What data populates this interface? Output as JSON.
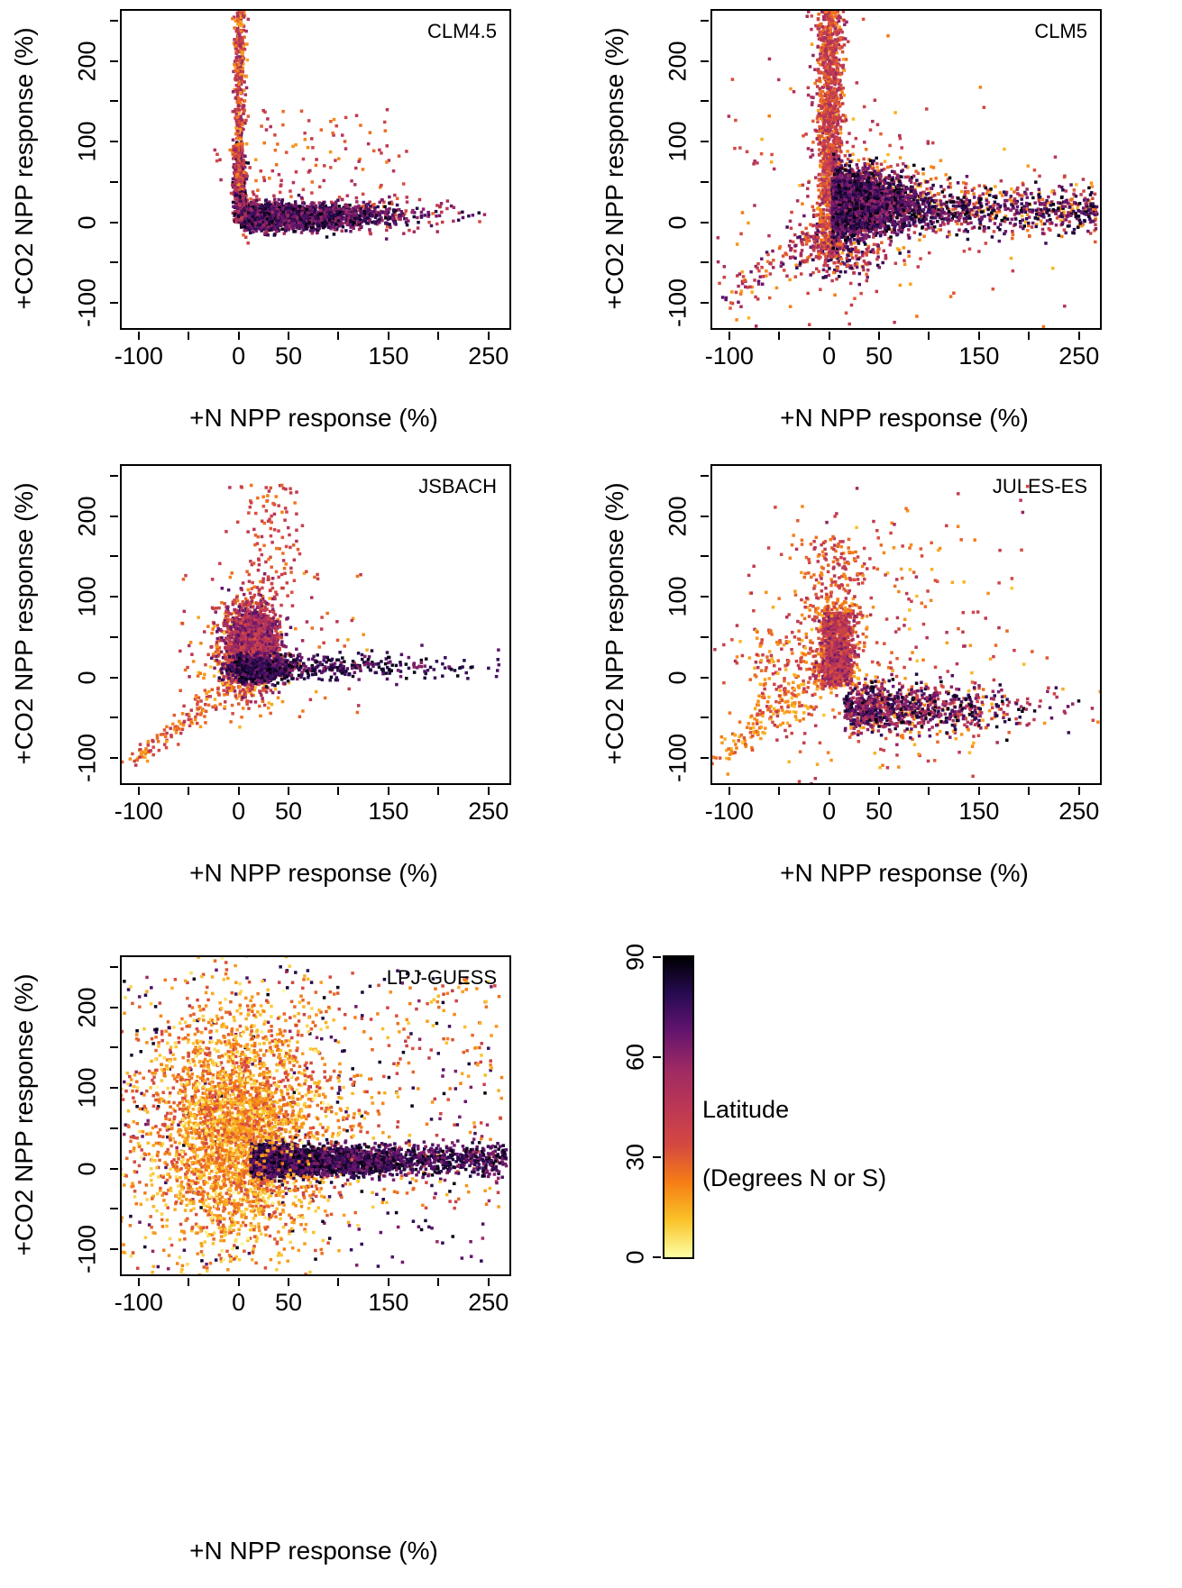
{
  "chart_data": {
    "type": "scatter",
    "xlabel": "+N NPP response (%)",
    "ylabel": "+CO2 NPP response (%)",
    "xlim": [
      -117,
      271
    ],
    "ylim": [
      -131,
      262
    ],
    "x_tick_values": [
      -100,
      -50,
      0,
      50,
      100,
      150,
      200,
      250
    ],
    "x_tick_labels": [
      "-100",
      "",
      "0",
      "50",
      "",
      "150",
      "",
      "250"
    ],
    "y_tick_values": [
      -100,
      -50,
      0,
      50,
      100,
      150,
      200,
      250
    ],
    "y_tick_labels": [
      "-100",
      "",
      "0",
      "",
      "100",
      "",
      "200",
      ""
    ],
    "color_variable": "Latitude (Degrees N or S)",
    "point_shape": "square",
    "legend": {
      "title": "Latitude",
      "subtitle": "(Degrees N or S)",
      "min": 0,
      "max": 90,
      "tick_values": [
        0,
        30,
        60,
        90
      ],
      "tick_labels": [
        "0",
        "30",
        "60",
        "90"
      ],
      "colormap": [
        {
          "p": 0,
          "c": "#fcffa4"
        },
        {
          "p": 0.125,
          "c": "#fac228"
        },
        {
          "p": 0.25,
          "c": "#f57d15"
        },
        {
          "p": 0.375,
          "c": "#d44842"
        },
        {
          "p": 0.5,
          "c": "#bb3755"
        },
        {
          "p": 0.625,
          "c": "#9f2a63"
        },
        {
          "p": 0.75,
          "c": "#65156e"
        },
        {
          "p": 0.875,
          "c": "#280b53"
        },
        {
          "p": 1,
          "c": "#000004"
        }
      ]
    },
    "panels": [
      {
        "title": "CLM4.5",
        "clusters": [
          {
            "n": 90,
            "x": {
              "u": [
                10,
                170
              ]
            },
            "y": {
              "u": [
                25,
                140
              ]
            },
            "lat": {
              "u": [
                18,
                50
              ]
            }
          },
          {
            "n": 260,
            "x": {
              "hn": [
                2,
                95
              ]
            },
            "y": {
              "n": [
                10,
                13
              ]
            },
            "lat": {
              "u": [
                25,
                55
              ]
            }
          },
          {
            "n": 1800,
            "x": {
              "hn": [
                2,
                70
              ]
            },
            "y": {
              "n": [
                7,
                8
              ]
            },
            "lat": {
              "u": [
                55,
                90
              ]
            }
          },
          {
            "n": 800,
            "x": {
              "n": [
                1,
                2.5
              ]
            },
            "y": {
              "hn": [
                0,
                40
              ]
            },
            "lat": {
              "u": [
                35,
                90
              ]
            }
          },
          {
            "n": 400,
            "x": {
              "n": [
                1,
                3
              ]
            },
            "y": {
              "u": [
                40,
                262
              ]
            },
            "lat": {
              "u": [
                15,
                60
              ]
            }
          },
          {
            "n": 12,
            "x": {
              "u": [
                -25,
                -3
              ]
            },
            "y": {
              "u": [
                40,
                95
              ]
            },
            "lat": {
              "u": [
                30,
                60
              ]
            }
          }
        ]
      },
      {
        "title": "CLM5",
        "clusters": [
          {
            "n": 220,
            "x": {
              "n": [
                20,
                80
              ]
            },
            "y": {
              "n": [
                30,
                80
              ]
            },
            "lat": {
              "u": [
                12,
                55
              ]
            }
          },
          {
            "n": 100,
            "diag": {
              "from": [
                -105,
                -98
              ],
              "to": [
                -2,
                -2
              ],
              "jit": 9
            },
            "lat": {
              "u": [
                15,
                75
              ]
            }
          },
          {
            "n": 300,
            "x": {
              "u": [
                30,
                268
              ]
            },
            "y": {
              "n": [
                22,
                18
              ]
            },
            "lat": {
              "u": [
                12,
                45
              ]
            }
          },
          {
            "n": 350,
            "x": {
              "hn": [
                3,
                50
              ]
            },
            "y": {
              "n": [
                30,
                28
              ]
            },
            "lat": {
              "u": [
                15,
                45
              ]
            }
          },
          {
            "n": 260,
            "x": {
              "n": [
                8,
                22
              ]
            },
            "y": {
              "n": [
                -35,
                18
              ]
            },
            "lat": {
              "u": [
                20,
                85
              ]
            }
          },
          {
            "n": 1000,
            "x": {
              "n": [
                0,
                7
              ]
            },
            "y": {
              "u": [
                -40,
                262
              ]
            },
            "lat": {
              "u": [
                15,
                60
              ]
            }
          },
          {
            "n": 400,
            "x": {
              "n": [
                2,
                6
              ]
            },
            "y": {
              "n": [
                120,
                70
              ]
            },
            "lat": {
              "u": [
                25,
                55
              ]
            }
          },
          {
            "n": 2200,
            "x": {
              "hn": [
                3,
                38
              ]
            },
            "y": {
              "n": [
                24,
                20
              ]
            },
            "lat": {
              "u": [
                55,
                90
              ]
            }
          },
          {
            "n": 600,
            "x": {
              "u": [
                30,
                268
              ]
            },
            "y": {
              "n": [
                14,
                13
              ]
            },
            "lat": {
              "u": [
                55,
                90
              ]
            }
          }
        ]
      },
      {
        "title": "JSBACH",
        "clusters": [
          {
            "n": 140,
            "diag": {
              "from": [
                -107,
                -104
              ],
              "to": [
                -4,
                -6
              ],
              "jit": 7
            },
            "lat": {
              "u": [
                15,
                45
              ]
            }
          },
          {
            "n": 90,
            "x": {
              "u": [
                -60,
                130
              ]
            },
            "y": {
              "u": [
                -50,
                130
              ]
            },
            "lat": {
              "u": [
                15,
                50
              ]
            }
          },
          {
            "n": 130,
            "x": {
              "n": [
                32,
                20
              ]
            },
            "y": {
              "u": [
                85,
                240
              ]
            },
            "lat": {
              "u": [
                22,
                48
              ]
            }
          },
          {
            "n": 500,
            "x": {
              "n": [
                6,
                16
              ]
            },
            "y": {
              "n": [
                28,
                30
              ]
            },
            "lat": {
              "u": [
                10,
                35
              ]
            }
          },
          {
            "n": 1700,
            "x": {
              "n": [
                13,
                13
              ]
            },
            "y": {
              "n": [
                40,
                25
              ]
            },
            "lat": {
              "u": [
                32,
                72
              ]
            }
          },
          {
            "n": 600,
            "x": {
              "n": [
                20,
                15
              ]
            },
            "y": {
              "n": [
                10,
                8
              ]
            },
            "lat": {
              "u": [
                62,
                90
              ]
            }
          },
          {
            "n": 300,
            "x": {
              "hn": [
                40,
                85
              ]
            },
            "y": {
              "n": [
                13,
                8
              ]
            },
            "lat": {
              "u": [
                60,
                90
              ]
            }
          }
        ]
      },
      {
        "title": "JULES-ES",
        "clusters": [
          {
            "n": 320,
            "x": {
              "n": [
                30,
                85
              ]
            },
            "y": {
              "n": [
                20,
                85
              ]
            },
            "lat": {
              "u": [
                10,
                50
              ]
            }
          },
          {
            "n": 110,
            "diag": {
              "from": [
                -108,
                -102
              ],
              "to": [
                -25,
                -8
              ],
              "jit": 8
            },
            "lat": {
              "u": [
                10,
                35
              ]
            }
          },
          {
            "n": 160,
            "x": {
              "u": [
                -75,
                -5
              ]
            },
            "y": {
              "u": [
                -60,
                60
              ]
            },
            "lat": {
              "u": [
                12,
                45
              ]
            }
          },
          {
            "n": 300,
            "x": {
              "n": [
                6,
                12
              ]
            },
            "y": {
              "u": [
                -15,
                90
              ]
            },
            "lat": {
              "u": [
                12,
                38
              ]
            }
          },
          {
            "n": 800,
            "x": {
              "n": [
                8,
                8
              ]
            },
            "y": {
              "u": [
                -10,
                80
              ]
            },
            "lat": {
              "u": [
                28,
                65
              ]
            }
          },
          {
            "n": 180,
            "x": {
              "n": [
                8,
                18
              ]
            },
            "y": {
              "u": [
                75,
                175
              ]
            },
            "lat": {
              "u": [
                18,
                48
              ]
            }
          },
          {
            "n": 260,
            "x": {
              "hn": [
                20,
                90
              ]
            },
            "y": {
              "n": [
                -42,
                18
              ]
            },
            "lat": {
              "u": [
                12,
                42
              ]
            }
          },
          {
            "n": 700,
            "x": {
              "hn": [
                15,
                80
              ]
            },
            "y": {
              "n": [
                -38,
                15
              ]
            },
            "lat": {
              "u": [
                45,
                90
              ]
            }
          },
          {
            "n": 25,
            "x": {
              "u": [
                -40,
                200
              ]
            },
            "y": {
              "u": [
                150,
                240
              ]
            },
            "lat": {
              "u": [
                15,
                60
              ]
            }
          }
        ]
      },
      {
        "title": "LPJ-GUESS",
        "clusters": [
          {
            "n": 260,
            "x": {
              "u": [
                -115,
                255
              ]
            },
            "y": {
              "u": [
                -125,
                250
              ]
            },
            "lat": {
              "u": [
                55,
                90
              ]
            }
          },
          {
            "n": 1500,
            "x": {
              "n": [
                -10,
                60
              ]
            },
            "y": {
              "n": [
                45,
                90
              ]
            },
            "lat": {
              "u": [
                6,
                35
              ]
            }
          },
          {
            "n": 1500,
            "x": {
              "n": [
                -2,
                32
              ]
            },
            "y": {
              "n": [
                60,
                65
              ]
            },
            "lat": {
              "u": [
                8,
                35
              ]
            }
          },
          {
            "n": 220,
            "x": {
              "n": [
                0,
                45
              ]
            },
            "y": {
              "n": [
                35,
                75
              ]
            },
            "lat": {
              "u": [
                0,
                12
              ]
            }
          },
          {
            "n": 320,
            "x": {
              "u": [
                40,
                265
              ]
            },
            "y": {
              "u": [
                -50,
                235
              ]
            },
            "lat": {
              "u": [
                10,
                40
              ]
            }
          },
          {
            "n": 2300,
            "x": {
              "hn": [
                12,
                70
              ]
            },
            "y": {
              "n": [
                10,
                9
              ]
            },
            "lat": {
              "u": [
                60,
                90
              ]
            }
          },
          {
            "n": 600,
            "x": {
              "u": [
                90,
                268
              ]
            },
            "y": {
              "n": [
                11,
                10
              ]
            },
            "lat": {
              "u": [
                60,
                90
              ]
            }
          },
          {
            "n": 250,
            "x": {
              "n": [
                0,
                40
              ]
            },
            "y": {
              "n": [
                20,
                40
              ]
            },
            "lat": {
              "u": [
                10,
                30
              ]
            }
          }
        ]
      }
    ]
  }
}
